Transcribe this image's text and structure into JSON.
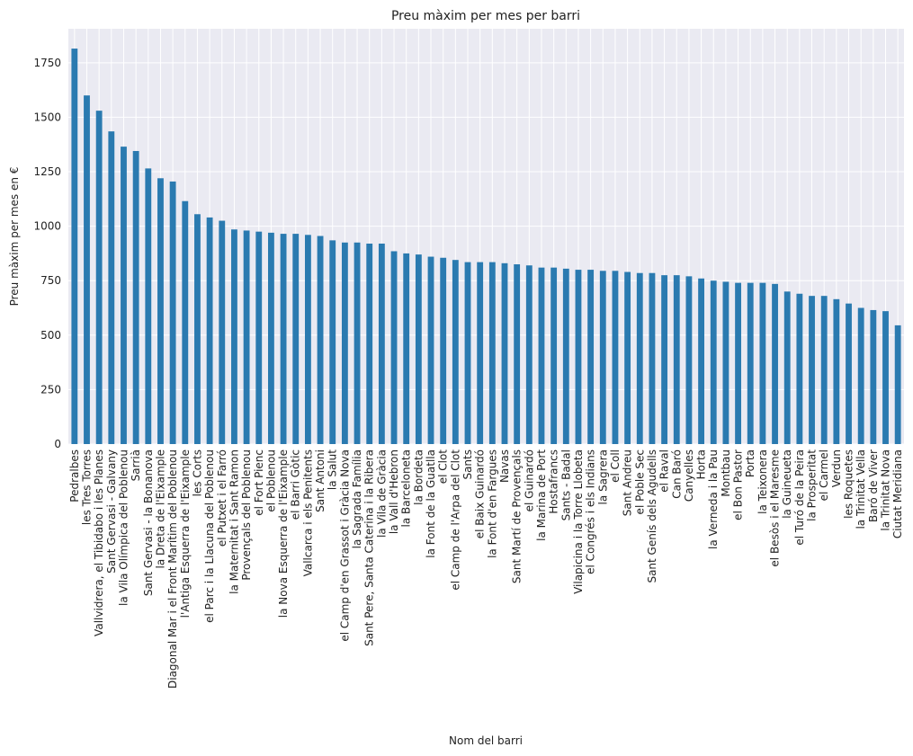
{
  "chart_data": {
    "type": "bar",
    "title": "Preu màxim per mes per barri",
    "xlabel": "Nom del barri",
    "ylabel": "Preu màxim per mes en €",
    "categories": [
      "Pedralbes",
      "les Tres Torres",
      "Vallvidrera, el Tibidabo i les Planes",
      "Sant Gervasi - Galvany",
      "la Vila Olímpica del Poblenou",
      "Sarrià",
      "Sant Gervasi - la Bonanova",
      "la Dreta de l'Eixample",
      "Diagonal Mar i el Front Marítim del Poblenou",
      "l'Antiga Esquerra de l'Eixample",
      "les Corts",
      "el Parc i la Llacuna del Poblenou",
      "el Putxet i el Farró",
      "la Maternitat i Sant Ramon",
      "Provençals del Poblenou",
      "el Fort Pienc",
      "el Poblenou",
      "la Nova Esquerra de l'Eixample",
      "el Barri Gòtic",
      "Vallcarca i els Penitents",
      "Sant Antoni",
      "la Salut",
      "el Camp d'en Grassot i Gràcia Nova",
      "la Sagrada Família",
      "Sant Pere, Santa Caterina i la Ribera",
      "la Vila de Gràcia",
      "la Vall d'Hebron",
      "la Barceloneta",
      "la Bordeta",
      "la Font de la Guatlla",
      "el Clot",
      "el Camp de l'Arpa del Clot",
      "Sants",
      "el Baix Guinardó",
      "la Font d'en Fargues",
      "Navas",
      "Sant Martí de Provençals",
      "el Guinardó",
      "la Marina de Port",
      "Hostafrancs",
      "Sants - Badal",
      "Vilapicina i la Torre Llobeta",
      "el Congrés i els Indians",
      "la Sagrera",
      "el Coll",
      "Sant Andreu",
      "el Poble Sec",
      "Sant Genís dels Agudells",
      "el Raval",
      "Can Baró",
      "Canyelles",
      "Horta",
      "la Verneda i la Pau",
      "Montbau",
      "el Bon Pastor",
      "Porta",
      "la Teixonera",
      "el Besòs i el Maresme",
      "la Guineueta",
      "el Turó de la Peira",
      "la Prosperitat",
      "el Carmel",
      "Verdun",
      "les Roquetes",
      "la Trinitat Vella",
      "Baró de Viver",
      "la Trinitat Nova",
      "Ciutat Meridiana"
    ],
    "values": [
      1815,
      1600,
      1530,
      1435,
      1365,
      1345,
      1265,
      1220,
      1205,
      1115,
      1055,
      1040,
      1025,
      985,
      980,
      975,
      970,
      965,
      965,
      960,
      955,
      935,
      925,
      925,
      920,
      920,
      885,
      875,
      870,
      860,
      855,
      845,
      835,
      835,
      835,
      830,
      825,
      820,
      810,
      810,
      805,
      800,
      800,
      795,
      795,
      790,
      785,
      785,
      775,
      775,
      770,
      760,
      750,
      745,
      740,
      740,
      740,
      735,
      700,
      690,
      680,
      680,
      665,
      645,
      625,
      615,
      610,
      545
    ],
    "color": "#2a7ab0",
    "ylim": [
      0,
      1906
    ],
    "yticks": [
      0,
      250,
      500,
      750,
      1000,
      1250,
      1500,
      1750
    ],
    "grid": true
  }
}
